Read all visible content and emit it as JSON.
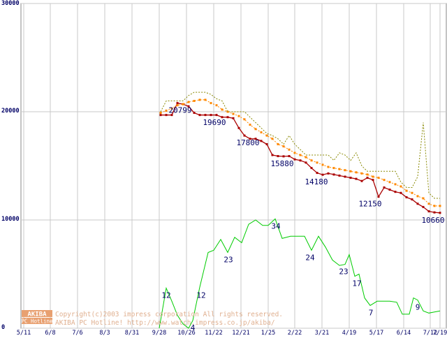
{
  "chart_data": {
    "type": "line",
    "ylim": [
      0,
      30000
    ],
    "y_ticks": [
      0,
      10000,
      20000,
      30000
    ],
    "x_tick_labels": [
      "5/11",
      "6/8",
      "7/6",
      "8/3",
      "8/31",
      "9/28",
      "10/26",
      "11/22",
      "12/21",
      "1/25",
      "2/22",
      "3/21",
      "4/19",
      "5/17",
      "6/14",
      "7/12",
      "7/19"
    ],
    "x_tick_pos": [
      34,
      72,
      111,
      150,
      189,
      228,
      267,
      306,
      345,
      384,
      422,
      461,
      500,
      539,
      578,
      616,
      630
    ],
    "grid": true,
    "series": [
      {
        "name": "price-lowest",
        "color": "#aa0000",
        "style": "solid-square-markers",
        "x": [
          230,
          238,
          246,
          254,
          262,
          270,
          278,
          286,
          294,
          302,
          310,
          318,
          326,
          334,
          342,
          350,
          358,
          366,
          374,
          382,
          390,
          398,
          406,
          414,
          422,
          430,
          438,
          446,
          454,
          462,
          470,
          478,
          486,
          494,
          502,
          510,
          518,
          526,
          534,
          542,
          550,
          558,
          566,
          574,
          582,
          590,
          598,
          606,
          614,
          622,
          630
        ],
        "values": [
          19700,
          19700,
          19700,
          20800,
          20700,
          20500,
          19900,
          19700,
          19700,
          19700,
          19700,
          19500,
          19500,
          19400,
          18500,
          17800,
          17500,
          17500,
          17300,
          17000,
          16000,
          15900,
          15880,
          15900,
          15600,
          15500,
          15300,
          14800,
          14350,
          14180,
          14300,
          14200,
          14100,
          14000,
          13900,
          13800,
          13600,
          13900,
          13700,
          12150,
          13000,
          12800,
          12600,
          12500,
          12100,
          11900,
          11500,
          11200,
          10800,
          10700,
          10660
        ]
      },
      {
        "name": "price-average",
        "color": "#ff8800",
        "style": "dotted-square-markers",
        "x": [
          230,
          238,
          246,
          254,
          262,
          270,
          278,
          286,
          294,
          302,
          310,
          318,
          326,
          334,
          342,
          350,
          358,
          366,
          374,
          382,
          390,
          398,
          406,
          414,
          422,
          430,
          438,
          446,
          454,
          462,
          470,
          478,
          486,
          494,
          502,
          510,
          518,
          526,
          534,
          542,
          550,
          558,
          566,
          574,
          582,
          590,
          598,
          606,
          614,
          622,
          630
        ],
        "values": [
          19900,
          20100,
          20300,
          20600,
          20700,
          20900,
          21000,
          21100,
          21100,
          20800,
          20600,
          20200,
          20000,
          19800,
          19600,
          19300,
          18800,
          18400,
          18100,
          17800,
          17500,
          17000,
          16800,
          16500,
          16200,
          16000,
          15800,
          15500,
          15300,
          15100,
          14900,
          14800,
          14700,
          14600,
          14500,
          14400,
          14300,
          14200,
          14000,
          13900,
          13700,
          13500,
          13300,
          13100,
          12700,
          12500,
          12200,
          12000,
          11500,
          11300,
          11300
        ]
      },
      {
        "name": "price-highest",
        "color": "#888800",
        "style": "dotted",
        "x": [
          230,
          238,
          246,
          254,
          262,
          270,
          278,
          286,
          294,
          302,
          310,
          318,
          326,
          334,
          342,
          350,
          358,
          366,
          374,
          382,
          390,
          398,
          406,
          414,
          422,
          430,
          438,
          446,
          454,
          462,
          470,
          478,
          486,
          494,
          502,
          510,
          518,
          526,
          534,
          542,
          550,
          558,
          566,
          574,
          582,
          590,
          598,
          606,
          614,
          622,
          630
        ],
        "values": [
          20000,
          21000,
          21000,
          21000,
          21000,
          21500,
          21800,
          21800,
          21800,
          21600,
          21200,
          21000,
          20000,
          20000,
          20000,
          20000,
          19500,
          19000,
          18500,
          18000,
          17800,
          17500,
          17000,
          17800,
          17000,
          16500,
          16000,
          16000,
          16000,
          16000,
          16000,
          15500,
          16200,
          16000,
          15500,
          16200,
          15000,
          14500,
          14500,
          14500,
          14500,
          14500,
          14500,
          13500,
          13000,
          13000,
          14000,
          19000,
          12500,
          12000,
          12000
        ]
      },
      {
        "name": "shop-count",
        "color": "#00cc00",
        "style": "solid",
        "x": [
          228,
          238,
          246,
          254,
          262,
          270,
          276,
          286,
          298,
          306,
          316,
          326,
          336,
          346,
          356,
          366,
          376,
          384,
          394,
          404,
          416,
          428,
          436,
          446,
          456,
          466,
          476,
          486,
          494,
          500,
          508,
          514,
          522,
          530,
          540,
          548,
          558,
          568,
          576,
          586,
          592,
          598,
          606,
          614,
          622,
          630
        ],
        "values": [
          0,
          3700,
          2500,
          1200,
          400,
          0,
          700,
          3800,
          7000,
          7200,
          8200,
          7000,
          8400,
          7900,
          9600,
          10000,
          9500,
          9500,
          10100,
          8300,
          8500,
          8500,
          8500,
          7200,
          8500,
          7500,
          6300,
          5800,
          5900,
          6800,
          4800,
          5000,
          2800,
          2100,
          2500,
          2500,
          2500,
          2400,
          1300,
          1300,
          2800,
          2600,
          1600,
          1400,
          1500,
          1600
        ]
      }
    ],
    "annotations": [
      {
        "series": "price-lowest",
        "x": 258,
        "y": 20799,
        "text": "20799"
      },
      {
        "series": "price-lowest",
        "x": 307,
        "y": 19690,
        "text": "19690"
      },
      {
        "series": "price-lowest",
        "x": 355,
        "y": 17800,
        "text": "17800"
      },
      {
        "series": "price-lowest",
        "x": 404,
        "y": 15880,
        "text": "15880"
      },
      {
        "series": "price-lowest",
        "x": 453,
        "y": 14180,
        "text": "14180"
      },
      {
        "series": "price-lowest",
        "x": 530,
        "y": 12150,
        "text": "12150"
      },
      {
        "series": "price-lowest",
        "x": 620,
        "y": 10660,
        "text": "10660"
      },
      {
        "series": "shop-count",
        "x": 238,
        "y": 3700,
        "text": "12"
      },
      {
        "series": "shop-count",
        "x": 276,
        "y": 700,
        "text": "4"
      },
      {
        "series": "shop-count",
        "x": 288,
        "y": 3700,
        "text": "12"
      },
      {
        "series": "shop-count",
        "x": 327,
        "y": 7000,
        "text": "23"
      },
      {
        "series": "shop-count",
        "x": 395,
        "y": 10100,
        "text": "34"
      },
      {
        "series": "shop-count",
        "x": 444,
        "y": 7200,
        "text": "24"
      },
      {
        "series": "shop-count",
        "x": 492,
        "y": 5900,
        "text": "23"
      },
      {
        "series": "shop-count",
        "x": 511,
        "y": 4800,
        "text": "17"
      },
      {
        "series": "shop-count",
        "x": 531,
        "y": 2100,
        "text": "7"
      },
      {
        "series": "shop-count",
        "x": 598,
        "y": 2600,
        "text": "9"
      }
    ],
    "title": "",
    "xlabel": "",
    "ylabel": ""
  },
  "watermark": {
    "copyright": "Copyright(c)2003 impress corporation All rights reserved.",
    "hotline": "AKIBA PC Hotline!  http://www.watch.impress.co.jp/akiba/",
    "logo_top": "AKIBA",
    "logo_bottom": "PC Hotline"
  }
}
